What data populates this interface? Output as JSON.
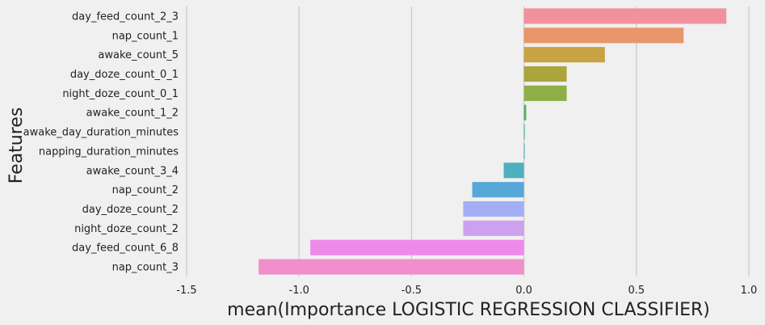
{
  "chart_data": {
    "type": "bar",
    "orientation": "horizontal",
    "title": "",
    "xlabel": "mean(Importance LOGISTIC REGRESSION CLASSIFIER)",
    "ylabel": "Features",
    "xlim": [
      -1.5,
      1.0
    ],
    "xticks": [
      "-1.5",
      "-1.0",
      "-0.5",
      "0.0",
      "0.5",
      "1.0"
    ],
    "grid": "vertical",
    "background": "#f0f0f0",
    "categories": [
      "day_feed_count_2_3",
      "nap_count_1",
      "awake_count_5",
      "day_doze_count_0_1",
      "night_doze_count_0_1",
      "awake_count_1_2",
      "awake_day_duration_minutes",
      "napping_duration_minutes",
      "awake_count_3_4",
      "nap_count_2",
      "day_doze_count_2",
      "night_doze_count_2",
      "day_feed_count_6_8",
      "nap_count_3"
    ],
    "values": [
      0.9,
      0.71,
      0.36,
      0.19,
      0.19,
      0.01,
      0.0,
      0.0,
      -0.09,
      -0.23,
      -0.27,
      -0.27,
      -0.95,
      -1.18
    ],
    "colors": [
      "#f0919d",
      "#e9966a",
      "#c9a244",
      "#aba53b",
      "#8fae46",
      "#50b35c",
      "#4bb292",
      "#4db2a8",
      "#4fb0bd",
      "#57a8d8",
      "#a3aef3",
      "#cda0f0",
      "#ef8aea",
      "#f08fcc"
    ]
  }
}
